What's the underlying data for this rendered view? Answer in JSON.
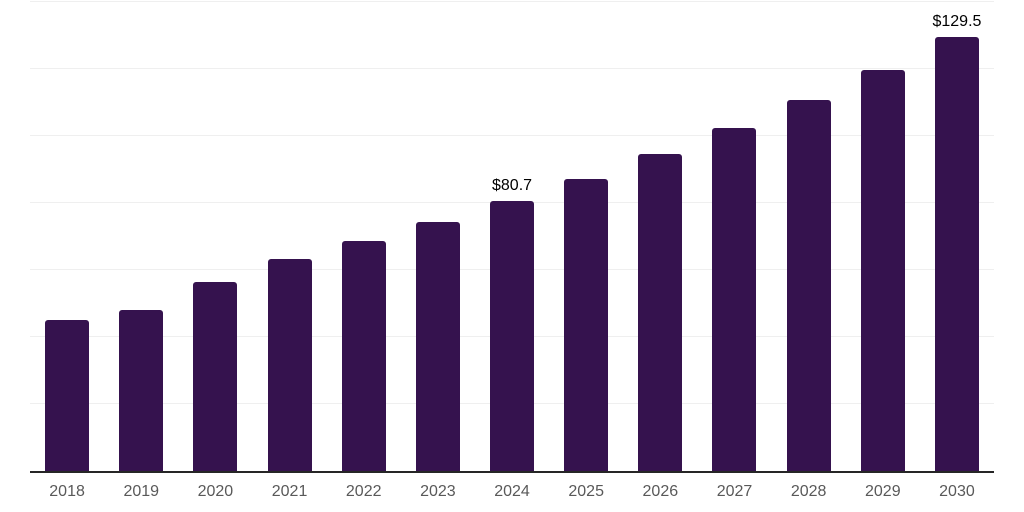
{
  "chart_data": {
    "type": "bar",
    "title": "",
    "xlabel": "",
    "ylabel": "",
    "categories": [
      "2018",
      "2019",
      "2020",
      "2021",
      "2022",
      "2023",
      "2024",
      "2025",
      "2026",
      "2027",
      "2028",
      "2029",
      "2030"
    ],
    "series": [
      {
        "name": "market-value-usd-billion",
        "values": [
          45.0,
          48.0,
          56.4,
          63.2,
          68.6,
          74.4,
          80.7,
          87.3,
          94.5,
          102.3,
          110.6,
          119.7,
          129.5
        ]
      }
    ],
    "data_labels": [
      {
        "category": "2024",
        "index": 6,
        "text": "$80.7"
      },
      {
        "category": "2030",
        "index": 12,
        "text": "$129.5"
      }
    ],
    "ylim": [
      0,
      140
    ],
    "gridline_step": 20,
    "grid": true,
    "legend_position": "none",
    "colors": {
      "bar": "#35124e",
      "axis_line": "#262626",
      "gridline": "#efefef",
      "tick_label": "#595959",
      "value_label": "#000000",
      "background": "#ffffff"
    }
  }
}
